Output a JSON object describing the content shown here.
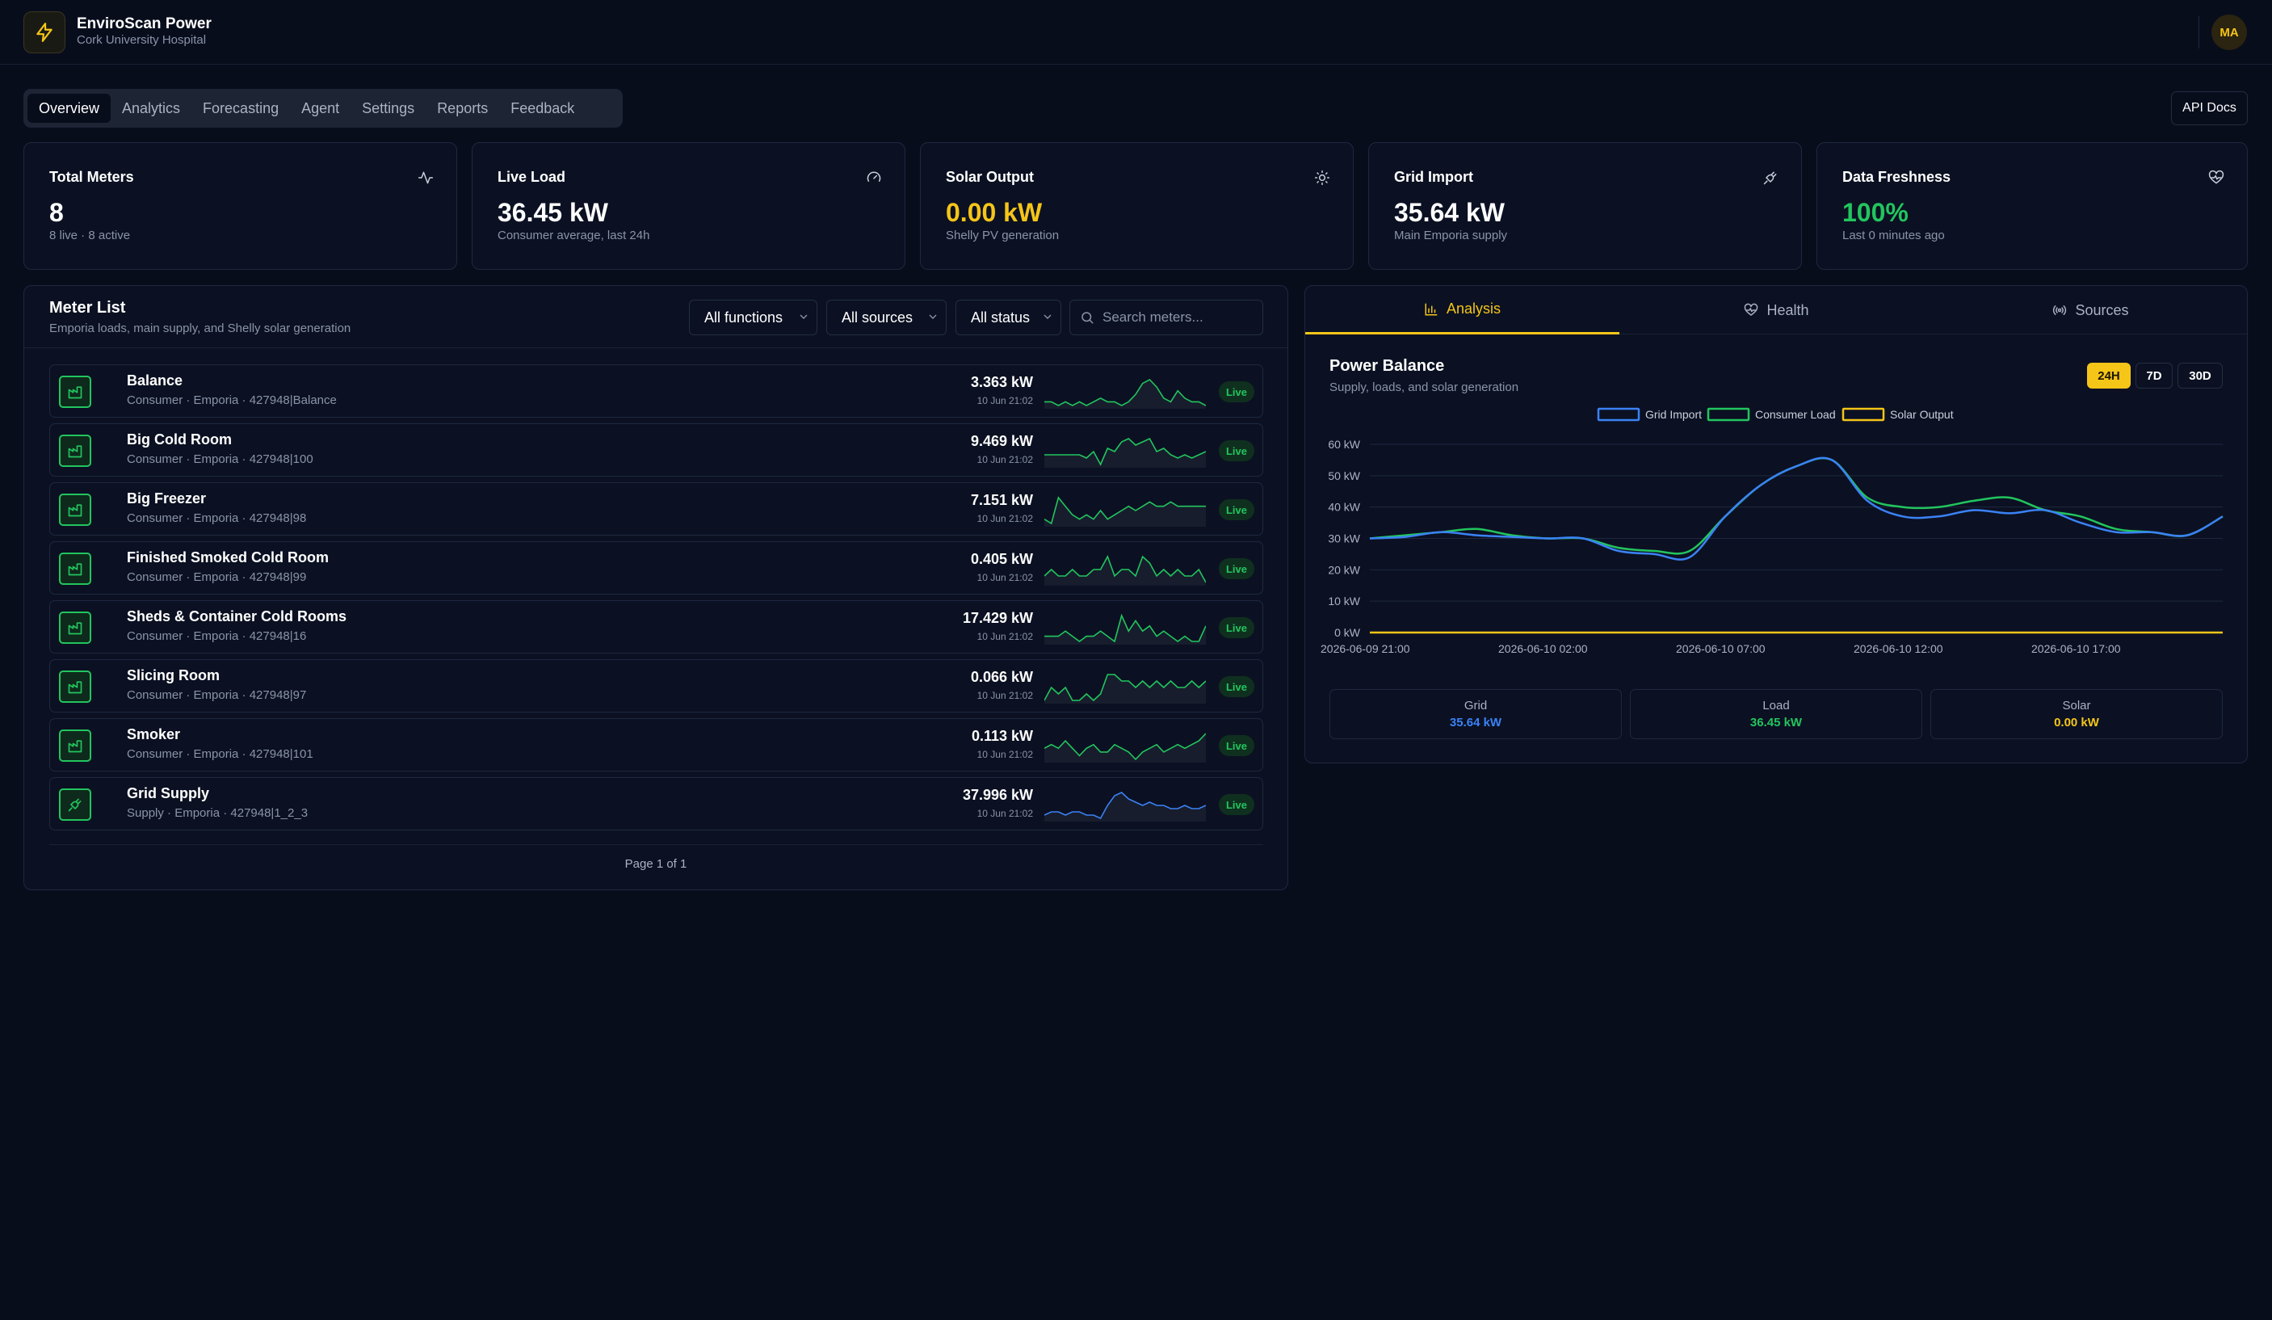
{
  "app": {
    "title": "EnviroScan Power",
    "subtitle": "Cork University Hospital",
    "avatar_initials": "MA",
    "accent": "#f5c518"
  },
  "nav": {
    "tabs": [
      "Overview",
      "Analytics",
      "Forecasting",
      "Agent",
      "Settings",
      "Reports",
      "Feedback"
    ],
    "active": "Overview",
    "api_docs": "API Docs"
  },
  "stats": [
    {
      "title": "Total Meters",
      "value": "8",
      "sub": "8 live · 8 active",
      "icon": "activity-icon",
      "value_color": "#ffffff"
    },
    {
      "title": "Live Load",
      "value": "36.45 kW",
      "sub": "Consumer average, last 24h",
      "icon": "gauge-icon",
      "value_color": "#ffffff"
    },
    {
      "title": "Solar Output",
      "value": "0.00 kW",
      "sub": "Shelly PV generation",
      "icon": "sun-icon",
      "value_color": "#f5c518"
    },
    {
      "title": "Grid Import",
      "value": "35.64 kW",
      "sub": "Main Emporia supply",
      "icon": "plug-icon",
      "value_color": "#ffffff"
    },
    {
      "title": "Data Freshness",
      "value": "100%",
      "sub": "Last 0 minutes ago",
      "icon": "heart-pulse-icon",
      "value_color": "#22c55e"
    }
  ],
  "meter_list": {
    "title": "Meter List",
    "subtitle": "Emporia loads, main supply, and Shelly solar generation",
    "filters": {
      "functions": "All functions",
      "sources": "All sources",
      "status": "All status"
    },
    "search_placeholder": "Search meters...",
    "pagination": "Page 1 of 1",
    "rows": [
      {
        "name": "Balance",
        "meta": "Consumer · Emporia · 427948|Balance",
        "value": "3.363 kW",
        "time": "10 Jun 21:02",
        "status": "Live",
        "kind": "consumer",
        "spark": [
          3,
          3,
          2,
          3,
          2,
          3,
          2,
          3,
          4,
          3,
          3,
          2,
          3,
          5,
          8,
          9,
          7,
          4,
          3,
          6,
          4,
          3,
          3,
          2
        ]
      },
      {
        "name": "Big Cold Room",
        "meta": "Consumer · Emporia · 427948|100",
        "value": "9.469 kW",
        "time": "10 Jun 21:02",
        "status": "Live",
        "kind": "consumer",
        "spark": [
          4,
          4,
          4,
          4,
          4,
          4,
          3,
          5,
          1,
          6,
          5,
          8,
          9,
          7,
          8,
          9,
          5,
          6,
          4,
          3,
          4,
          3,
          4,
          5
        ]
      },
      {
        "name": "Big Freezer",
        "meta": "Consumer · Emporia · 427948|98",
        "value": "7.151 kW",
        "time": "10 Jun 21:02",
        "status": "Live",
        "kind": "consumer",
        "spark": [
          3,
          2,
          8,
          6,
          4,
          3,
          4,
          3,
          5,
          3,
          4,
          5,
          6,
          5,
          6,
          7,
          6,
          6,
          7,
          6,
          6,
          6,
          6,
          6
        ]
      },
      {
        "name": "Finished Smoked Cold Room",
        "meta": "Consumer · Emporia · 427948|99",
        "value": "0.405 kW",
        "time": "10 Jun 21:02",
        "status": "Live",
        "kind": "consumer",
        "spark": [
          3,
          4,
          3,
          3,
          4,
          3,
          3,
          4,
          4,
          6,
          3,
          4,
          4,
          3,
          6,
          5,
          3,
          4,
          3,
          4,
          3,
          3,
          4,
          2
        ]
      },
      {
        "name": "Sheds & Container Cold Rooms",
        "meta": "Consumer · Emporia · 427948|16",
        "value": "17.429 kW",
        "time": "10 Jun 21:02",
        "status": "Live",
        "kind": "consumer",
        "spark": [
          4,
          4,
          4,
          5,
          4,
          3,
          4,
          4,
          5,
          4,
          3,
          8,
          5,
          7,
          5,
          6,
          4,
          5,
          4,
          3,
          4,
          3,
          3,
          6
        ]
      },
      {
        "name": "Slicing Room",
        "meta": "Consumer · Emporia · 427948|97",
        "value": "0.066 kW",
        "time": "10 Jun 21:02",
        "status": "Live",
        "kind": "consumer",
        "spark": [
          3,
          5,
          4,
          5,
          3,
          3,
          4,
          3,
          4,
          7,
          7,
          6,
          6,
          5,
          6,
          5,
          6,
          5,
          6,
          5,
          5,
          6,
          5,
          6
        ]
      },
      {
        "name": "Smoker",
        "meta": "Consumer · Emporia · 427948|101",
        "value": "0.113 kW",
        "time": "10 Jun 21:02",
        "status": "Live",
        "kind": "consumer",
        "spark": [
          4,
          5,
          4,
          6,
          4,
          2,
          4,
          5,
          3,
          3,
          5,
          4,
          3,
          1,
          3,
          4,
          5,
          3,
          4,
          5,
          4,
          5,
          6,
          8
        ]
      },
      {
        "name": "Grid Supply",
        "meta": "Supply · Emporia · 427948|1_2_3",
        "value": "37.996 kW",
        "time": "10 Jun 21:02",
        "status": "Live",
        "kind": "supply",
        "spark": [
          2,
          3,
          3,
          2,
          3,
          3,
          2,
          2,
          1,
          5,
          8,
          9,
          7,
          6,
          5,
          6,
          5,
          5,
          4,
          4,
          5,
          4,
          4,
          5
        ]
      }
    ]
  },
  "analysis": {
    "tabs": [
      "Analysis",
      "Health",
      "Sources"
    ],
    "active_tab": "Analysis",
    "title": "Power Balance",
    "subtitle": "Supply, loads, and solar generation",
    "ranges": [
      "24H",
      "7D",
      "30D"
    ],
    "active_range": "24H",
    "summary": [
      {
        "label": "Grid",
        "value": "35.64 kW",
        "color": "#3b82f6"
      },
      {
        "label": "Load",
        "value": "36.45 kW",
        "color": "#22c55e"
      },
      {
        "label": "Solar",
        "value": "0.00 kW",
        "color": "#f5c518"
      }
    ]
  },
  "chart_data": {
    "type": "line",
    "title": "Power Balance",
    "x_tick_labels": [
      "2026-06-09 21:00",
      "2026-06-10 02:00",
      "2026-06-10 07:00",
      "2026-06-10 12:00",
      "2026-06-10 17:00"
    ],
    "x_start": "2026-06-09 21:00",
    "x_end": "2026-06-10 21:00",
    "x": [
      0,
      1,
      2,
      3,
      4,
      5,
      6,
      7,
      8,
      9,
      10,
      11,
      12,
      13,
      14,
      15,
      16,
      17,
      18,
      19,
      20,
      21,
      22,
      23,
      24
    ],
    "y_ticks": [
      "0 kW",
      "10 kW",
      "20 kW",
      "30 kW",
      "40 kW",
      "50 kW",
      "60 kW"
    ],
    "ylim": [
      0,
      60
    ],
    "grid": true,
    "legend_position": "top-center",
    "series": [
      {
        "name": "Grid Import",
        "color": "#3b82f6",
        "values": [
          30,
          30.5,
          32,
          31,
          30.5,
          30,
          30,
          26,
          25,
          24,
          37,
          47,
          53,
          55,
          42,
          37,
          37,
          39,
          38,
          39,
          35,
          32,
          32,
          31,
          37
        ]
      },
      {
        "name": "Consumer Load",
        "color": "#22c55e",
        "values": [
          30,
          31,
          32,
          33,
          31,
          30,
          30,
          27,
          26,
          26,
          37,
          47,
          53,
          55,
          43,
          40,
          40,
          42,
          43,
          39,
          37,
          33,
          32,
          31,
          37
        ]
      },
      {
        "name": "Solar Output",
        "color": "#f5c518",
        "values": [
          0,
          0,
          0,
          0,
          0,
          0,
          0,
          0,
          0,
          0,
          0,
          0,
          0,
          0,
          0,
          0,
          0,
          0,
          0,
          0,
          0,
          0,
          0,
          0,
          0
        ]
      }
    ]
  }
}
